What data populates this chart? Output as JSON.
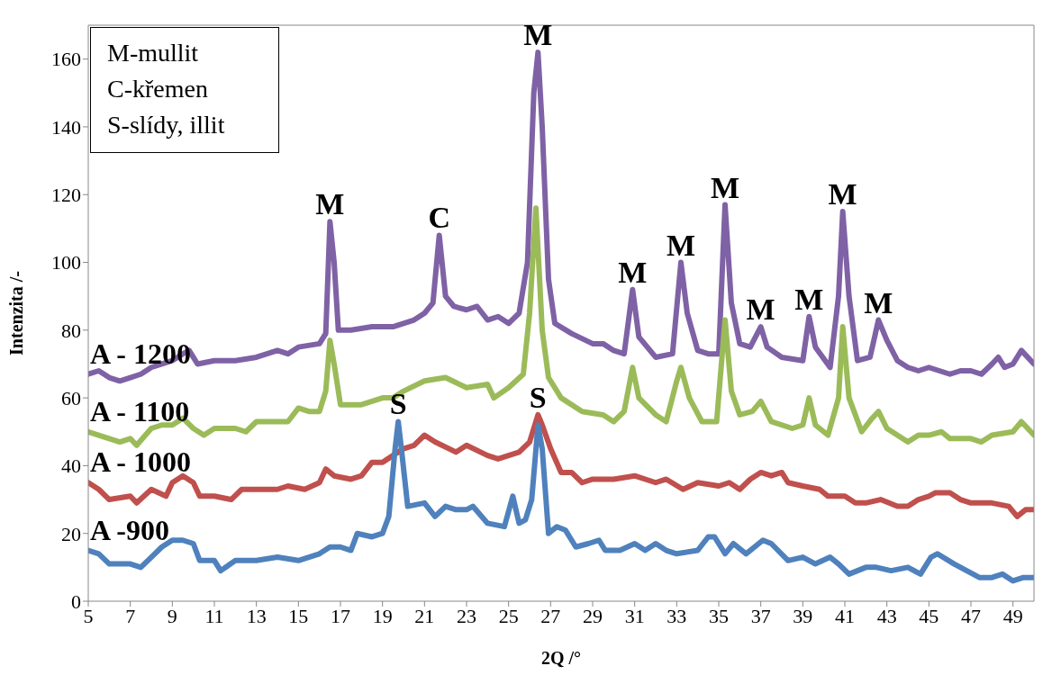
{
  "chart_data": {
    "type": "line",
    "xlabel": "2Q /°",
    "ylabel": "Intenzita /-",
    "xlim": [
      5,
      50
    ],
    "xticks": [
      5,
      7,
      9,
      11,
      13,
      15,
      17,
      19,
      21,
      23,
      25,
      27,
      29,
      31,
      33,
      35,
      37,
      39,
      41,
      43,
      45,
      47,
      49
    ],
    "ylim": [
      0,
      170
    ],
    "yticks": [
      0,
      20,
      40,
      60,
      80,
      100,
      120,
      140,
      160
    ],
    "annotations": [
      "M-mullit",
      "C-křemen",
      "S-slídy, illit",
      {
        "text": "M",
        "x": 16.5,
        "y": 112
      },
      {
        "text": "C",
        "x": 21.7,
        "y": 108
      },
      {
        "text": "M",
        "x": 26.4,
        "y": 162
      },
      {
        "text": "M",
        "x": 30.9,
        "y": 92
      },
      {
        "text": "M",
        "x": 33.2,
        "y": 100
      },
      {
        "text": "M",
        "x": 35.3,
        "y": 117
      },
      {
        "text": "M",
        "x": 37,
        "y": 81
      },
      {
        "text": "M",
        "x": 39.3,
        "y": 84
      },
      {
        "text": "M",
        "x": 40.9,
        "y": 115
      },
      {
        "text": "M",
        "x": 42.6,
        "y": 83
      },
      {
        "text": "S",
        "x": 19.75,
        "y": 53
      },
      {
        "text": "S",
        "x": 26.4,
        "y": 55
      }
    ],
    "series": [
      {
        "name": "A - 1200",
        "color": "#7f62a5",
        "x": [
          5,
          5.5,
          6,
          6.5,
          7,
          7.5,
          8,
          8.5,
          9,
          9.5,
          9.8,
          10.2,
          11,
          12,
          13,
          14,
          14.5,
          15,
          16,
          16.3,
          16.5,
          16.7,
          16.9,
          17.5,
          18.5,
          19.5,
          20.5,
          21,
          21.4,
          21.7,
          22,
          22.4,
          23,
          23.5,
          24,
          24.5,
          25,
          25.5,
          25.9,
          26.2,
          26.4,
          26.6,
          26.9,
          27.2,
          28,
          29,
          29.5,
          30,
          30.5,
          30.9,
          31.2,
          32,
          32.8,
          33.2,
          33.5,
          34,
          34.5,
          35,
          35.3,
          35.6,
          36,
          36.5,
          37,
          37.3,
          38,
          39,
          39.3,
          39.6,
          40.3,
          40.7,
          40.9,
          41.2,
          41.6,
          42.2,
          42.6,
          43,
          43.5,
          44,
          44.5,
          45,
          46,
          46.5,
          47,
          47.5,
          48,
          48.3,
          48.6,
          49,
          49.4,
          50
        ],
        "values": [
          67,
          68,
          66,
          65,
          66,
          67,
          69,
          70,
          71,
          73,
          74,
          70,
          71,
          71,
          72,
          74,
          73,
          75,
          76,
          79,
          112,
          100,
          80,
          80,
          81,
          81,
          83,
          85,
          88,
          108,
          90,
          87,
          86,
          87,
          83,
          84,
          82,
          85,
          100,
          150,
          162,
          140,
          95,
          82,
          79,
          76,
          76,
          74,
          73,
          92,
          78,
          72,
          73,
          100,
          85,
          74,
          73,
          73,
          117,
          88,
          76,
          75,
          81,
          75,
          72,
          71,
          84,
          75,
          69,
          90,
          115,
          90,
          71,
          72,
          83,
          77,
          71,
          69,
          68,
          69,
          67,
          68,
          68,
          67,
          70,
          72,
          69,
          70,
          74,
          70
        ]
      },
      {
        "name": "A - 1100",
        "color": "#9bbb59",
        "x": [
          5,
          5.5,
          6,
          6.5,
          7,
          7.3,
          8,
          8.5,
          9,
          9.5,
          10,
          10.5,
          11,
          12,
          12.5,
          13,
          14,
          14.5,
          15,
          15.5,
          16,
          16.3,
          16.5,
          16.7,
          17,
          17.5,
          18,
          19,
          19.5,
          20,
          21,
          22,
          23,
          24,
          24.3,
          25,
          25.7,
          26,
          26.3,
          26.6,
          26.9,
          27.5,
          28.5,
          29.5,
          30,
          30.5,
          30.9,
          31.2,
          32,
          32.5,
          33,
          33.2,
          33.6,
          34.2,
          34.9,
          35.3,
          35.6,
          36,
          36.6,
          37,
          37.5,
          38.5,
          39,
          39.3,
          39.6,
          40.2,
          40.7,
          40.9,
          41.2,
          41.8,
          42.3,
          42.6,
          43,
          43.5,
          44,
          44.5,
          45,
          45.6,
          46,
          47,
          47.5,
          48,
          49,
          49.4,
          50
        ],
        "values": [
          50,
          49,
          48,
          47,
          48,
          46,
          51,
          52,
          52,
          54,
          51,
          49,
          51,
          51,
          50,
          53,
          53,
          53,
          57,
          56,
          56,
          62,
          77,
          70,
          58,
          58,
          58,
          60,
          60,
          62,
          65,
          66,
          63,
          64,
          60,
          63,
          67,
          85,
          116,
          80,
          66,
          60,
          56,
          55,
          53,
          56,
          69,
          60,
          55,
          53,
          65,
          69,
          60,
          53,
          53,
          83,
          62,
          55,
          56,
          59,
          53,
          51,
          52,
          60,
          52,
          49,
          60,
          81,
          60,
          50,
          54,
          56,
          51,
          49,
          47,
          49,
          49,
          50,
          48,
          48,
          47,
          49,
          50,
          53,
          49
        ]
      },
      {
        "name": "A - 1000",
        "color": "#c0504d",
        "x": [
          5,
          5.5,
          6,
          7,
          7.3,
          8,
          8.7,
          9,
          9.5,
          10,
          10.3,
          11,
          11.8,
          12.3,
          13,
          14,
          14.5,
          15.3,
          16,
          16.3,
          16.7,
          17.5,
          18,
          18.5,
          19,
          19.5,
          20,
          20.5,
          21,
          21.5,
          22.5,
          23,
          24,
          24.5,
          25,
          25.5,
          26,
          26.4,
          26.6,
          27,
          27.5,
          28,
          28.5,
          29,
          30,
          31,
          32,
          32.5,
          33.3,
          34,
          35,
          35.5,
          36,
          36.5,
          37,
          37.5,
          38,
          38.3,
          39,
          39.8,
          40.2,
          41,
          41.5,
          42,
          42.7,
          43.5,
          44,
          44.5,
          45,
          45.3,
          46,
          46.5,
          47,
          48,
          48.8,
          49.2,
          49.6,
          50
        ],
        "values": [
          35,
          33,
          30,
          31,
          29,
          33,
          31,
          35,
          37,
          35,
          31,
          31,
          30,
          33,
          33,
          33,
          34,
          33,
          35,
          39,
          37,
          36,
          37,
          41,
          41,
          43,
          45,
          46,
          49,
          47,
          44,
          46,
          43,
          42,
          43,
          44,
          47,
          55,
          52,
          45,
          38,
          38,
          35,
          36,
          36,
          37,
          35,
          36,
          33,
          35,
          34,
          35,
          33,
          36,
          38,
          37,
          38,
          35,
          34,
          33,
          31,
          31,
          29,
          29,
          30,
          28,
          28,
          30,
          31,
          32,
          32,
          30,
          29,
          29,
          28,
          25,
          27,
          27
        ]
      },
      {
        "name": "A -900",
        "color": "#4f81bd",
        "x": [
          5,
          5.5,
          6,
          6.5,
          7,
          7.5,
          8,
          8.5,
          9,
          9.5,
          10,
          10.3,
          11,
          11.3,
          12,
          13,
          14,
          15,
          16,
          16.5,
          17,
          17.5,
          17.8,
          18.5,
          19,
          19.3,
          19.6,
          19.75,
          19.9,
          20.2,
          21,
          21.5,
          22,
          22.5,
          23,
          23.3,
          24,
          24.8,
          25.2,
          25.5,
          25.8,
          26.1,
          26.4,
          26.6,
          26.9,
          27.3,
          27.7,
          28.2,
          28.8,
          29.3,
          29.6,
          30.3,
          31,
          31.5,
          32,
          32.5,
          33,
          34,
          34.5,
          34.8,
          35.3,
          35.7,
          36.3,
          37.1,
          37.5,
          38.3,
          39,
          39.6,
          40.3,
          40.7,
          41.2,
          42,
          42.5,
          43.2,
          44,
          44.6,
          45.1,
          45.4,
          46.2,
          46.8,
          47.4,
          48,
          48.5,
          49,
          49.5,
          50
        ],
        "values": [
          15,
          14,
          11,
          11,
          11,
          10,
          13,
          16,
          18,
          18,
          17,
          12,
          12,
          9,
          12,
          12,
          13,
          12,
          14,
          16,
          16,
          15,
          20,
          19,
          20,
          25,
          45,
          53,
          45,
          28,
          29,
          25,
          28,
          27,
          27,
          28,
          23,
          22,
          31,
          23,
          24,
          30,
          52,
          45,
          20,
          22,
          21,
          16,
          17,
          18,
          15,
          15,
          17,
          15,
          17,
          15,
          14,
          15,
          19,
          19,
          14,
          17,
          14,
          18,
          17,
          12,
          13,
          11,
          13,
          11,
          8,
          10,
          10,
          9,
          10,
          8,
          13,
          14,
          11,
          9,
          7,
          7,
          8,
          6,
          7,
          7
        ]
      }
    ]
  }
}
